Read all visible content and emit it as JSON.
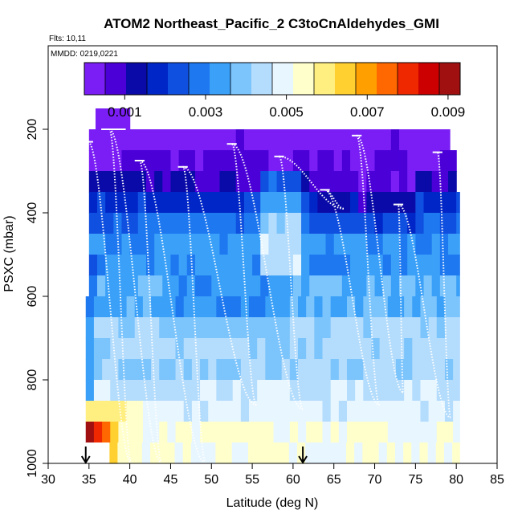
{
  "chart_data": {
    "type": "heatmap",
    "title": "ATOM2 Northeast_Pacific_2 C3toCnAldehydes_GMI",
    "flights_label": "Flts: 10,11",
    "dates_label": "MMDD: 0219,0221",
    "xlabel": "Latitude (deg N)",
    "ylabel": "PSXC (mbar)",
    "xlim": [
      30,
      85
    ],
    "ylim": [
      1000,
      0
    ],
    "x_ticks": [
      "30",
      "35",
      "40",
      "45",
      "50",
      "55",
      "60",
      "65",
      "70",
      "75",
      "80",
      "85"
    ],
    "x_tick_values": [
      30,
      35,
      40,
      45,
      50,
      55,
      60,
      65,
      70,
      75,
      80,
      85
    ],
    "y_ticks": [
      "200",
      "400",
      "600",
      "800",
      "1000"
    ],
    "y_tick_values": [
      200,
      400,
      600,
      800,
      1000
    ],
    "colorbar": {
      "min": 0.0,
      "max": 0.0093,
      "tick_labels": [
        "0.001",
        "0.003",
        "0.005",
        "0.007",
        "0.009"
      ],
      "tick_values": [
        0.001,
        0.003,
        0.005,
        0.007,
        0.009
      ],
      "colors": [
        "#7a1ef5",
        "#4b00d8",
        "#0a0aa8",
        "#0026c8",
        "#1050e0",
        "#1e78f0",
        "#3aa0f8",
        "#7cc4fc",
        "#b4dcfc",
        "#e8f6ff",
        "#ffffcc",
        "#ffee80",
        "#ffd030",
        "#ffa000",
        "#ff6800",
        "#f02800",
        "#cc0000",
        "#a01010"
      ]
    },
    "pressure_levels": [
      175,
      225,
      275,
      325,
      375,
      425,
      475,
      525,
      575,
      625,
      675,
      725,
      775,
      825,
      875,
      925,
      975
    ],
    "lat_range": [
      34.6,
      80.4
    ],
    "profile_tops": [
      [
        34.9,
        230
      ],
      [
        37.5,
        200
      ],
      [
        41.2,
        275
      ],
      [
        46.5,
        290
      ],
      [
        52.5,
        235
      ],
      [
        58.3,
        265
      ],
      [
        63.9,
        345
      ],
      [
        67.8,
        215
      ],
      [
        72.9,
        380
      ],
      [
        77.7,
        255
      ]
    ],
    "profile_bottoms": [
      [
        40.2,
        1000
      ],
      [
        43.9,
        1000
      ],
      [
        49.3,
        1000
      ],
      [
        55.5,
        860
      ],
      [
        61.2,
        870
      ],
      [
        66.2,
        390
      ],
      [
        70.6,
        860
      ],
      [
        73.5,
        830
      ],
      [
        79.3,
        890
      ]
    ],
    "arrows_lat": [
      34.6,
      61.2
    ]
  }
}
